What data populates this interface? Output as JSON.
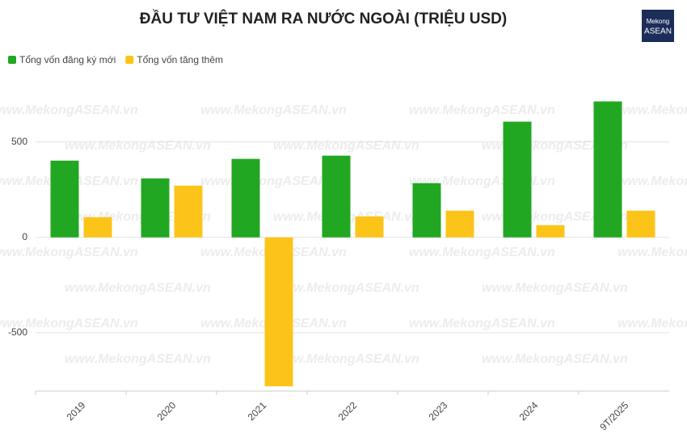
{
  "chart_data": {
    "type": "bar",
    "title": "ĐẦU TƯ VIỆT NAM RA NƯỚC NGOÀI (TRIỆU USD)",
    "logo": [
      "Mekong",
      "ASEAN"
    ],
    "watermark": "www.MekongASEAN.vn",
    "categories": [
      "2019",
      "2020",
      "2021",
      "2022",
      "2023",
      "2024",
      "9T/2025"
    ],
    "series": [
      {
        "name": "Tổng vốn đăng ký mới",
        "color": "#22a722",
        "values": [
          402,
          309,
          411,
          428,
          284,
          606,
          712
        ]
      },
      {
        "name": "Tổng vốn tăng thêm",
        "color": "#fcc419",
        "values": [
          106,
          271,
          -780,
          110,
          140,
          64,
          140
        ]
      }
    ],
    "ylim": [
      -805,
      820
    ],
    "yticks": [
      -500,
      0,
      500
    ],
    "grid": true,
    "legend": "top-left"
  }
}
